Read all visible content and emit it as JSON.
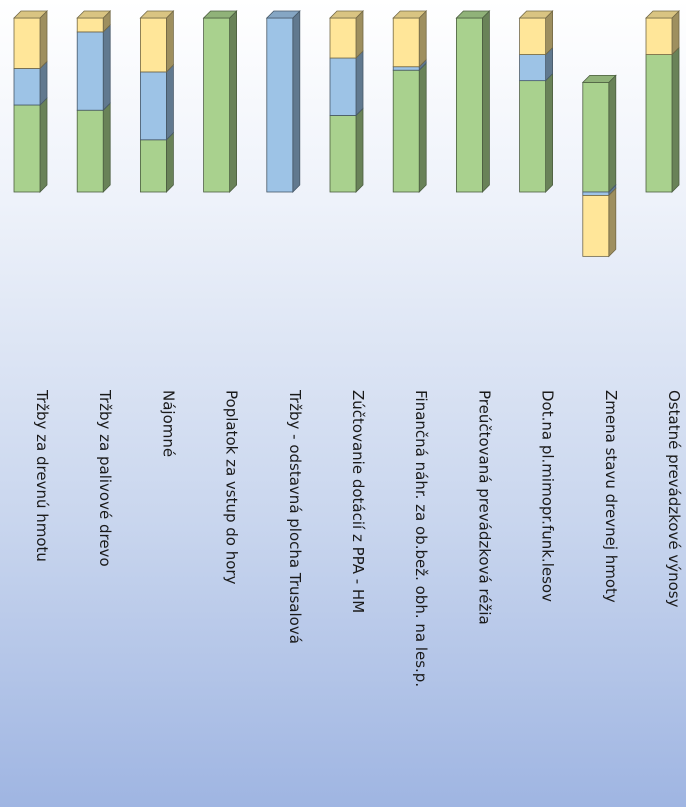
{
  "chart_data": {
    "type": "bar",
    "orientation": "rotated 90 degrees clockwise, stacked 3D columns",
    "stacked": true,
    "categories": [
      "Tržby za drevnú hmotu",
      "Tržby za palivové drevo",
      "Nájomné",
      "Poplatok za vstup do hory",
      "Tržby - odstavná plocha Trusalová",
      "Zúčtovanie dotácií z PPA - HM",
      "Finančná náhr. za ob.bež. obh. na les.p.",
      "Preúčtovaná prevádzková réžia",
      "Dot.na pl.mimopr.funk.lesov",
      "Zmena stavu drevnej hmoty",
      "Ostatné prevádzkové výnosy"
    ],
    "series": [
      {
        "color": "#a9d18e",
        "values": [
          0.5,
          0.47,
          0.3,
          1.0,
          0,
          0.44,
          0.7,
          1.0,
          0.64,
          0.63,
          0.79
        ]
      },
      {
        "color": "#9dc3e6",
        "values": [
          0.21,
          0.45,
          0.39,
          0,
          1.0,
          0.33,
          0.02,
          0,
          0.15,
          -0.02,
          0
        ]
      },
      {
        "color": "#ffe699",
        "values": [
          0.29,
          0.08,
          0.31,
          0,
          0,
          0.23,
          0.28,
          0,
          0.21,
          -0.35,
          0.21
        ]
      }
    ],
    "ylim": [
      -0.4,
      1.0
    ],
    "grid": false,
    "legend": "none"
  }
}
